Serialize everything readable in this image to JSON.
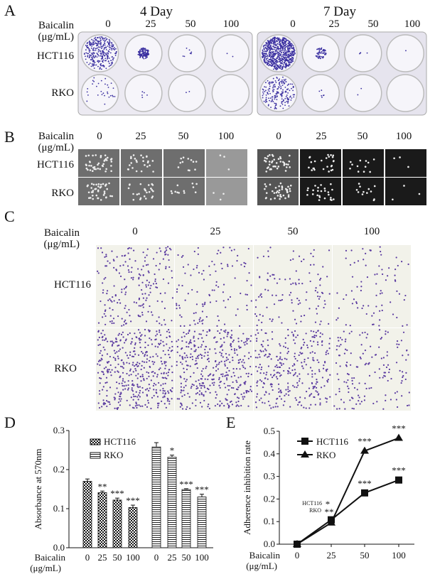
{
  "panel_labels": [
    "A",
    "B",
    "C",
    "D",
    "E"
  ],
  "treatment_label": "Baicalin",
  "unit_label": "(μg/mL)",
  "doses": [
    "0",
    "25",
    "50",
    "100"
  ],
  "cell_lines": [
    "HCT116",
    "RKO"
  ],
  "panel_a": {
    "titles": [
      "4 Day",
      "7 Day"
    ],
    "stain_color": "#3a2fa0"
  },
  "panel_c": {
    "stain_color": "#5a3aa0"
  },
  "chart_data": [
    {
      "type": "bar",
      "panel": "D",
      "ylabel": "Absorbance at 570nm",
      "xlabel": "Baicalin (μg/mL)",
      "ylim": [
        0,
        0.3
      ],
      "yticks": [
        "0.0",
        "0.1",
        "0.2",
        "0.3"
      ],
      "legend": "top-left",
      "groups": [
        "HCT116",
        "RKO"
      ],
      "categories": [
        "0",
        "25",
        "50",
        "100"
      ],
      "series": [
        {
          "name": "HCT116",
          "pattern": "checkered",
          "values": [
            0.17,
            0.141,
            0.122,
            0.103
          ],
          "errors": [
            0.006,
            0.004,
            0.005,
            0.006
          ],
          "significance": [
            "",
            "**",
            "***",
            "***"
          ]
        },
        {
          "name": "RKO",
          "pattern": "horizontal-stripes",
          "values": [
            0.258,
            0.232,
            0.149,
            0.13
          ],
          "errors": [
            0.011,
            0.005,
            0.002,
            0.007
          ],
          "significance": [
            "",
            "*",
            "***",
            "***"
          ]
        }
      ],
      "legend_labels": [
        "HCT116",
        "RKO"
      ]
    },
    {
      "type": "line",
      "panel": "E",
      "ylabel": "Adherence inhibition rate",
      "xlabel": "Baicalin (μg/mL)",
      "ylim": [
        0,
        0.5
      ],
      "yticks": [
        "0.0",
        "0.1",
        "0.2",
        "0.3",
        "0.4",
        "0.5"
      ],
      "x": [
        "0",
        "25",
        "50",
        "100"
      ],
      "legend": "top-left",
      "series": [
        {
          "name": "HCT116",
          "marker": "square",
          "values": [
            0,
            0.108,
            0.227,
            0.284
          ],
          "significance": [
            "",
            "*",
            "***",
            "***"
          ]
        },
        {
          "name": "RKO",
          "marker": "triangle",
          "values": [
            0,
            0.095,
            0.413,
            0.47
          ],
          "significance": [
            "",
            "**",
            "***",
            "***"
          ]
        }
      ],
      "annotation_25": {
        "hct": "HCT116",
        "hct_sig": "*",
        "rko": "RKO",
        "rko_sig": "**"
      }
    }
  ]
}
